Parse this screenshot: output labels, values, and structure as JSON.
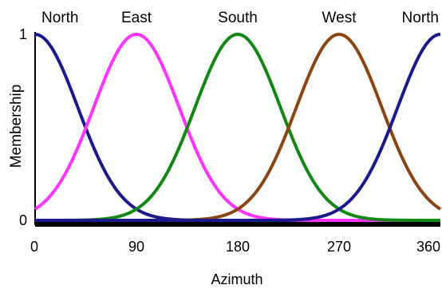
{
  "chart_data": {
    "type": "line",
    "title": "",
    "xlabel": "Azimuth",
    "ylabel": "Membership",
    "xlim": [
      0,
      360
    ],
    "ylim": [
      0,
      1
    ],
    "x_ticks": [
      {
        "value": 0,
        "label": "0"
      },
      {
        "value": 90,
        "label": "90"
      },
      {
        "value": 180,
        "label": "180"
      },
      {
        "value": 270,
        "label": "270"
      },
      {
        "value": 360,
        "label": "360"
      }
    ],
    "y_ticks": [
      {
        "value": 0,
        "label": "0"
      },
      {
        "value": 1,
        "label": "1"
      }
    ],
    "grid": false,
    "legend": "none",
    "series_shape": "gaussian",
    "sigma": 38,
    "series": [
      {
        "name": "North",
        "center": 0,
        "color": "#1a1a8c"
      },
      {
        "name": "East",
        "center": 90,
        "color": "#ff33ff"
      },
      {
        "name": "South",
        "center": 180,
        "color": "#118811"
      },
      {
        "name": "West",
        "center": 270,
        "color": "#8b4513"
      },
      {
        "name": "North",
        "center": 360,
        "color": "#1a1a8c"
      }
    ]
  }
}
